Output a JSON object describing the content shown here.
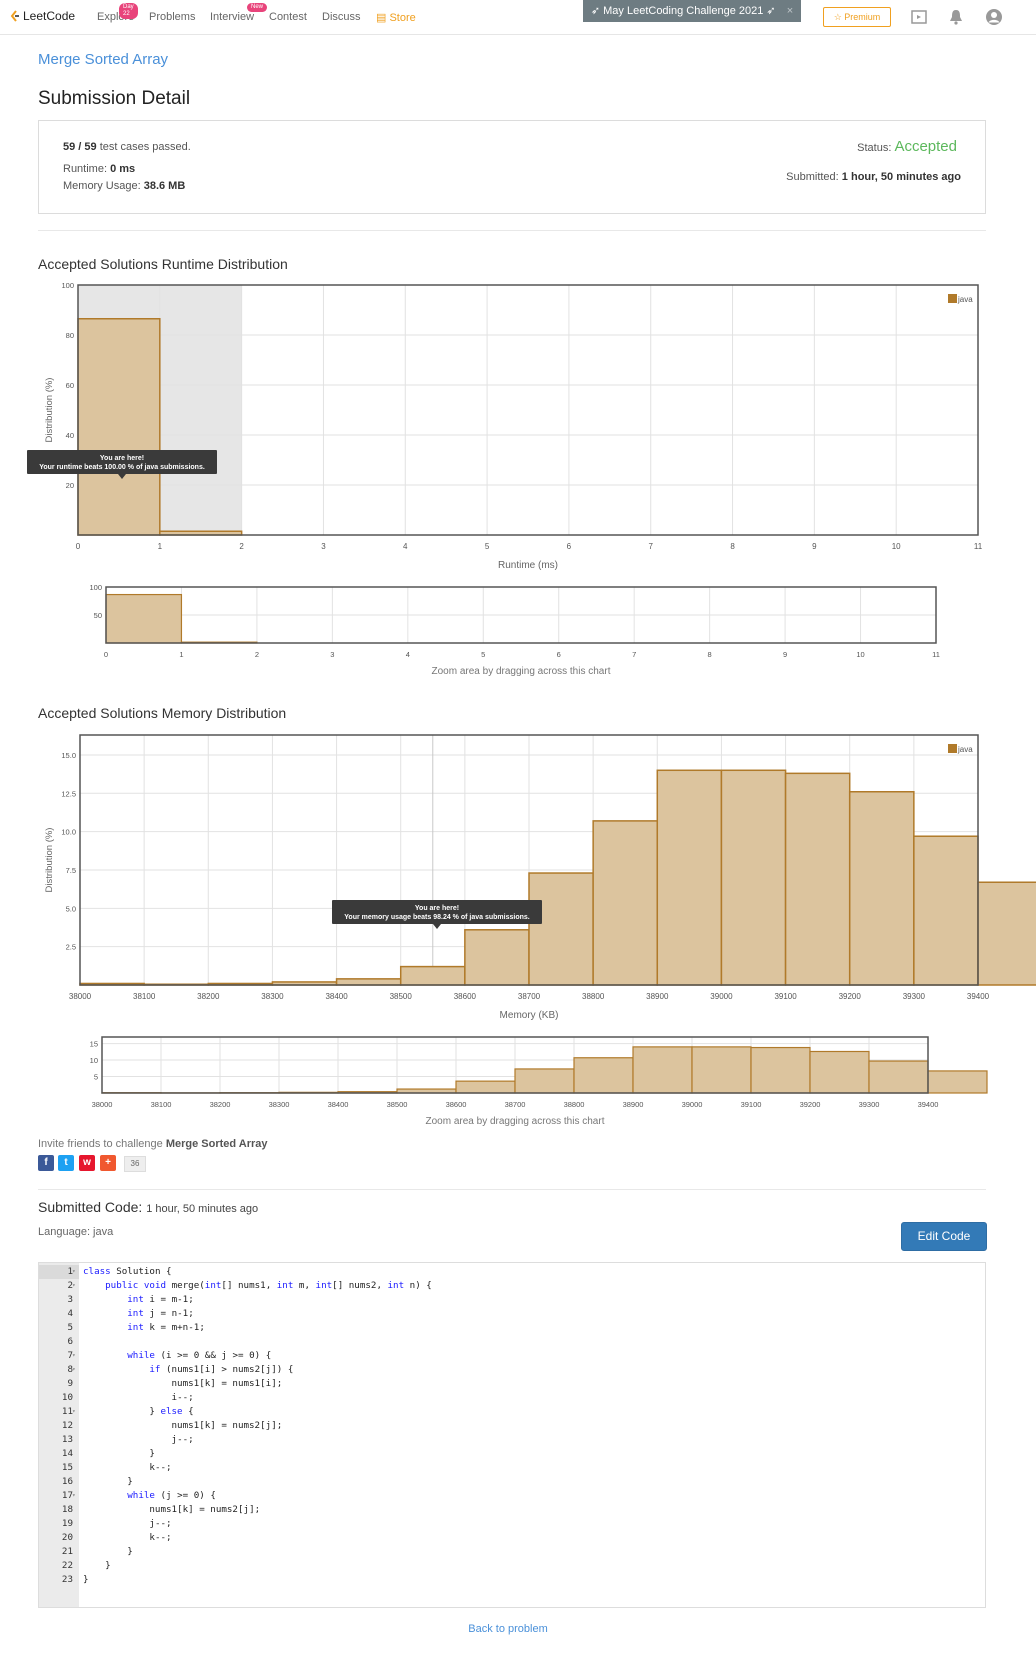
{
  "nav": {
    "logo": "LeetCode",
    "items": [
      {
        "label": "Explore",
        "badge": "Day 22"
      },
      {
        "label": "Problems",
        "badge": ""
      },
      {
        "label": "Interview",
        "badge": "New"
      },
      {
        "label": "Contest",
        "badge": ""
      },
      {
        "label": "Discuss",
        "badge": ""
      },
      {
        "label": "Store",
        "badge": ""
      }
    ],
    "challenge": "May LeetCoding Challenge 2021",
    "challenge_close": "×",
    "premium": "Premium"
  },
  "problem": {
    "title": "Merge Sorted Array"
  },
  "page_title": "Submission Detail",
  "summary": {
    "passed": "59 / 59",
    "passed_suffix": "test cases passed.",
    "runtime_label": "Runtime:",
    "runtime": "0 ms",
    "memory_label": "Memory Usage:",
    "memory": "38.6 MB",
    "status_label": "Status:",
    "status": "Accepted",
    "submitted_label": "Submitted:",
    "submitted": "1 hour, 50 minutes ago"
  },
  "colors": {
    "bar_fill": "#dcc49e",
    "bar_stroke": "#b07a2a",
    "accent": "#4a90d9",
    "accepted": "#5cb85c"
  },
  "chart_data": [
    {
      "type": "bar",
      "title": "Accepted Solutions Runtime Distribution",
      "xlabel": "Runtime (ms)",
      "ylabel": "Distribution (%)",
      "x": [
        0,
        1
      ],
      "bin_width": 1,
      "series": [
        {
          "name": "java",
          "values": [
            86.5,
            1.5
          ]
        }
      ],
      "xlim": [
        0,
        11
      ],
      "ylim": [
        0,
        100
      ],
      "xticks": [
        0,
        1,
        2,
        3,
        4,
        5,
        6,
        7,
        8,
        9,
        10,
        11
      ],
      "yticks": [
        20,
        40,
        60,
        80,
        100
      ],
      "highlight_range": [
        0,
        2
      ],
      "tooltip": [
        "You are here!",
        "Your runtime beats 100.00 % of java submissions."
      ],
      "legend": "top-right",
      "grid": true,
      "zoom": {
        "yticks": [
          50,
          100
        ],
        "caption": "Zoom area by dragging across this chart"
      }
    },
    {
      "type": "bar",
      "title": "Accepted Solutions Memory Distribution",
      "xlabel": "Memory (KB)",
      "ylabel": "Distribution (%)",
      "x": [
        38000,
        38100,
        38200,
        38300,
        38400,
        38500,
        38600,
        38700,
        38800,
        38900,
        39000,
        39100,
        39200,
        39300,
        39400
      ],
      "bin_width": 100,
      "series": [
        {
          "name": "java",
          "values": [
            0.1,
            0.05,
            0.1,
            0.2,
            0.4,
            1.2,
            3.6,
            7.3,
            10.7,
            14.0,
            14.0,
            13.8,
            12.6,
            9.7,
            6.7
          ]
        }
      ],
      "xlim": [
        38000,
        39400
      ],
      "ylim": [
        0,
        16.3
      ],
      "xticks": [
        38000,
        38100,
        38200,
        38300,
        38400,
        38500,
        38600,
        38700,
        38800,
        38900,
        39000,
        39100,
        39200,
        39300,
        39400
      ],
      "yticks": [
        2.5,
        5.0,
        7.5,
        10.0,
        12.5,
        15.0
      ],
      "ytick_labels": [
        "2.5",
        "5.0",
        "7.5",
        "10.0",
        "12.5",
        "15.0"
      ],
      "marker_x": 38550,
      "tooltip": [
        "You are here!",
        "Your memory usage beats 98.24 % of java submissions."
      ],
      "legend": "top-right",
      "grid": true,
      "zoom": {
        "yticks": [
          5,
          10,
          15
        ],
        "caption": "Zoom area by dragging across this chart"
      }
    }
  ],
  "invite": {
    "prefix": "Invite friends to challenge",
    "problem": "Merge Sorted Array",
    "share_count": "36"
  },
  "submitted_code": {
    "title": "Submitted Code:",
    "time": "1 hour, 50 minutes ago",
    "language": "Language: java",
    "edit_button": "Edit Code"
  },
  "code_lines": [
    "class Solution {",
    "    public void merge(int[] nums1, int m, int[] nums2, int n) {",
    "        int i = m-1;",
    "        int j = n-1;",
    "        int k = m+n-1;",
    "",
    "        while (i >= 0 && j >= 0) {",
    "            if (nums1[i] > nums2[j]) {",
    "                nums1[k] = nums1[i];",
    "                i--;",
    "            } else {",
    "                nums1[k] = nums2[j];",
    "                j--;",
    "            }",
    "            k--;",
    "        }",
    "        while (j >= 0) {",
    "            nums1[k] = nums2[j];",
    "            j--;",
    "            k--;",
    "        }",
    "    }",
    "}"
  ],
  "fold_lines": [
    1,
    2,
    7,
    8,
    11,
    17
  ],
  "back_link": "Back to problem"
}
